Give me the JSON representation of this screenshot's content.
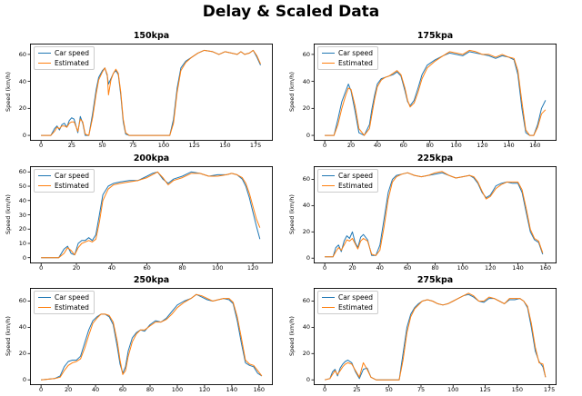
{
  "figure": {
    "suptitle": "Delay & Scaled Data",
    "background": "#ffffff"
  },
  "colors": {
    "car_speed": "#1f77b4",
    "estimated": "#ff7f0e"
  },
  "chart_data": [
    {
      "type": "line",
      "title": "150kpa",
      "ylabel": "Speed (km/h)",
      "legend_position": "upper-left",
      "grid": false,
      "xlim": [
        -9,
        189
      ],
      "ylim": [
        -4,
        68
      ],
      "xticks": [
        0,
        25,
        50,
        75,
        100,
        125,
        150,
        175
      ],
      "yticks": [
        0,
        20,
        40,
        60
      ],
      "x": [
        0,
        8,
        11,
        13,
        15,
        17,
        19,
        21,
        23,
        25,
        27,
        30,
        32,
        34,
        36,
        39,
        42,
        45,
        47,
        50,
        52,
        54,
        55,
        57,
        59,
        61,
        63,
        65,
        67,
        69,
        72,
        90,
        105,
        108,
        111,
        114,
        118,
        123,
        128,
        133,
        140,
        145,
        150,
        155,
        160,
        163,
        166,
        170,
        173,
        176,
        179
      ],
      "series": [
        {
          "name": "Car speed",
          "color": "#1f77b4",
          "values": [
            0,
            0,
            5,
            7,
            4,
            8,
            9,
            6,
            11,
            13,
            12,
            2,
            14,
            9,
            0,
            0,
            16,
            34,
            43,
            48,
            50,
            44,
            38,
            42,
            46,
            48,
            45,
            30,
            10,
            1,
            0,
            0,
            0,
            12,
            35,
            50,
            55,
            58,
            61,
            63,
            62,
            60,
            62,
            61,
            60,
            62,
            60,
            61,
            63,
            58,
            52
          ]
        },
        {
          "name": "Estimated",
          "color": "#ff7f0e",
          "values": [
            0,
            0,
            3,
            6,
            5,
            7,
            7,
            6,
            9,
            10,
            10,
            3,
            12,
            10,
            1,
            0,
            13,
            31,
            41,
            47,
            50,
            45,
            30,
            41,
            46,
            49,
            46,
            32,
            12,
            2,
            0,
            0,
            0,
            9,
            32,
            48,
            54,
            58,
            61,
            63,
            62,
            60,
            62,
            61,
            60,
            62,
            60,
            61,
            63,
            59,
            53
          ]
        }
      ]
    },
    {
      "type": "line",
      "title": "175kpa",
      "ylabel": "Speed (km/h)",
      "legend_position": "upper-left",
      "grid": false,
      "xlim": [
        -8.4,
        176.4
      ],
      "ylim": [
        -4,
        68
      ],
      "xticks": [
        0,
        20,
        40,
        60,
        80,
        100,
        120,
        140,
        160
      ],
      "yticks": [
        0,
        20,
        40,
        60
      ],
      "x": [
        0,
        7,
        10,
        13,
        16,
        18,
        20,
        23,
        26,
        30,
        34,
        36,
        38,
        40,
        43,
        46,
        49,
        52,
        55,
        58,
        61,
        63,
        65,
        68,
        71,
        74,
        78,
        84,
        90,
        95,
        100,
        105,
        110,
        115,
        120,
        125,
        130,
        135,
        140,
        144,
        147,
        150,
        153,
        156,
        159,
        162,
        165,
        168
      ],
      "series": [
        {
          "name": "Car speed",
          "color": "#1f77b4",
          "values": [
            0,
            0,
            12,
            25,
            33,
            38,
            33,
            18,
            2,
            0,
            8,
            20,
            30,
            38,
            42,
            43,
            44,
            45,
            47,
            44,
            33,
            25,
            22,
            26,
            35,
            45,
            52,
            56,
            59,
            61,
            60,
            59,
            62,
            61,
            60,
            59,
            57,
            59,
            58,
            56,
            45,
            20,
            2,
            0,
            0,
            8,
            20,
            26
          ]
        },
        {
          "name": "Estimated",
          "color": "#ff7f0e",
          "values": [
            0,
            0,
            8,
            20,
            30,
            35,
            34,
            22,
            5,
            0,
            5,
            16,
            27,
            36,
            41,
            43,
            44,
            46,
            48,
            45,
            35,
            26,
            21,
            24,
            32,
            42,
            50,
            55,
            59,
            62,
            61,
            60,
            63,
            62,
            60,
            60,
            58,
            60,
            58,
            57,
            48,
            25,
            4,
            0,
            0,
            6,
            16,
            19
          ]
        }
      ]
    },
    {
      "type": "line",
      "title": "200kpa",
      "ylabel": "Speed (km/h)",
      "legend_position": "upper-left",
      "grid": false,
      "xlim": [
        -6.3,
        131.3
      ],
      "ylim": [
        -4,
        64
      ],
      "xticks": [
        0,
        20,
        40,
        60,
        80,
        100,
        120
      ],
      "yticks": [
        0,
        10,
        20,
        30,
        40,
        50,
        60
      ],
      "x": [
        0,
        10,
        13,
        15,
        17,
        19,
        21,
        23,
        25,
        27,
        29,
        31,
        33,
        35,
        38,
        41,
        45,
        50,
        55,
        60,
        63,
        66,
        69,
        72,
        75,
        80,
        85,
        90,
        95,
        100,
        105,
        108,
        111,
        114,
        116,
        118,
        120,
        122,
        124
      ],
      "series": [
        {
          "name": "Car speed",
          "color": "#1f77b4",
          "values": [
            0,
            0,
            6,
            8,
            3,
            2,
            10,
            12,
            12,
            14,
            12,
            16,
            30,
            44,
            50,
            52,
            53,
            54,
            54,
            57,
            59,
            60,
            55,
            52,
            55,
            57,
            60,
            59,
            57,
            58,
            58,
            59,
            58,
            55,
            50,
            42,
            32,
            22,
            13
          ]
        },
        {
          "name": "Estimated",
          "color": "#ff7f0e",
          "values": [
            0,
            0,
            3,
            7,
            5,
            2,
            7,
            10,
            11,
            12,
            11,
            13,
            25,
            40,
            48,
            51,
            52,
            53,
            54,
            56,
            58,
            60,
            56,
            51,
            54,
            56,
            59,
            59,
            57,
            57,
            58,
            59,
            58,
            56,
            52,
            45,
            36,
            27,
            21
          ]
        }
      ]
    },
    {
      "type": "line",
      "title": "225kpa",
      "ylabel": "Speed (km/h)",
      "legend_position": "upper-left",
      "grid": false,
      "xlim": [
        -8,
        168
      ],
      "ylim": [
        -4,
        70
      ],
      "xticks": [
        0,
        20,
        40,
        60,
        80,
        100,
        120,
        140,
        160
      ],
      "yticks": [
        0,
        20,
        40,
        60
      ],
      "x": [
        0,
        6,
        8,
        10,
        12,
        14,
        16,
        18,
        20,
        22,
        24,
        26,
        28,
        31,
        34,
        37,
        40,
        43,
        46,
        49,
        52,
        56,
        60,
        65,
        70,
        75,
        80,
        85,
        90,
        95,
        100,
        105,
        108,
        111,
        114,
        117,
        120,
        124,
        128,
        132,
        136,
        140,
        143,
        146,
        149,
        152,
        155,
        158
      ],
      "series": [
        {
          "name": "Car speed",
          "color": "#1f77b4",
          "values": [
            1,
            1,
            8,
            10,
            5,
            13,
            17,
            15,
            20,
            12,
            8,
            16,
            18,
            14,
            2,
            2,
            10,
            30,
            50,
            60,
            63,
            64,
            65,
            63,
            62,
            63,
            64,
            65,
            63,
            61,
            62,
            63,
            61,
            57,
            50,
            46,
            48,
            55,
            57,
            58,
            57,
            57,
            50,
            35,
            20,
            14,
            12,
            3
          ]
        },
        {
          "name": "Estimated",
          "color": "#ff7f0e",
          "values": [
            1,
            1,
            5,
            8,
            6,
            10,
            14,
            13,
            15,
            11,
            7,
            13,
            15,
            13,
            3,
            2,
            6,
            24,
            45,
            58,
            62,
            64,
            65,
            63,
            62,
            63,
            65,
            66,
            63,
            61,
            62,
            63,
            62,
            58,
            51,
            45,
            47,
            53,
            56,
            58,
            58,
            58,
            52,
            38,
            22,
            15,
            13,
            4
          ]
        }
      ]
    },
    {
      "type": "line",
      "title": "250kpa",
      "ylabel": "Speed (km/h)",
      "legend_position": "upper-left",
      "grid": false,
      "xlim": [
        -8.1,
        170.1
      ],
      "ylim": [
        -4,
        70
      ],
      "xticks": [
        0,
        20,
        40,
        60,
        80,
        100,
        120,
        140,
        160
      ],
      "yticks": [
        0,
        20,
        40,
        60
      ],
      "x": [
        0,
        10,
        14,
        17,
        20,
        23,
        26,
        29,
        32,
        35,
        38,
        41,
        44,
        47,
        50,
        53,
        56,
        58,
        60,
        62,
        64,
        67,
        70,
        73,
        76,
        80,
        84,
        88,
        92,
        96,
        100,
        105,
        110,
        114,
        118,
        122,
        126,
        130,
        134,
        138,
        141,
        144,
        147,
        150,
        153,
        156,
        159,
        162
      ],
      "series": [
        {
          "name": "Car speed",
          "color": "#1f77b4",
          "values": [
            0,
            1,
            3,
            10,
            14,
            15,
            15,
            18,
            28,
            38,
            45,
            48,
            50,
            50,
            48,
            42,
            25,
            12,
            5,
            10,
            22,
            32,
            36,
            38,
            37,
            42,
            45,
            44,
            47,
            52,
            57,
            60,
            62,
            65,
            63,
            61,
            60,
            61,
            62,
            61,
            58,
            45,
            28,
            13,
            11,
            10,
            5,
            3
          ]
        },
        {
          "name": "Estimated",
          "color": "#ff7f0e",
          "values": [
            0,
            1,
            2,
            7,
            11,
            13,
            14,
            16,
            24,
            34,
            43,
            47,
            50,
            50,
            49,
            44,
            29,
            15,
            4,
            7,
            18,
            29,
            35,
            38,
            38,
            41,
            44,
            44,
            46,
            50,
            55,
            59,
            62,
            65,
            64,
            62,
            60,
            61,
            62,
            62,
            59,
            48,
            32,
            15,
            12,
            11,
            7,
            3
          ]
        }
      ]
    },
    {
      "type": "line",
      "title": "275kpa",
      "ylabel": "Speed (km/h)",
      "legend_position": "upper-left",
      "grid": false,
      "xlim": [
        -8.6,
        180.6
      ],
      "ylim": [
        -4,
        70
      ],
      "xticks": [
        0,
        25,
        50,
        75,
        100,
        125,
        150,
        175
      ],
      "yticks": [
        0,
        20,
        40,
        60
      ],
      "x": [
        0,
        4,
        6,
        8,
        10,
        12,
        14,
        16,
        18,
        21,
        24,
        27,
        30,
        33,
        36,
        40,
        50,
        58,
        61,
        64,
        67,
        70,
        73,
        76,
        80,
        84,
        88,
        92,
        96,
        100,
        104,
        108,
        112,
        116,
        120,
        124,
        128,
        132,
        136,
        140,
        144,
        148,
        152,
        155,
        158,
        161,
        164,
        167,
        170,
        172
      ],
      "series": [
        {
          "name": "Car speed",
          "color": "#1f77b4",
          "values": [
            0,
            1,
            6,
            8,
            3,
            9,
            12,
            14,
            15,
            13,
            6,
            1,
            8,
            9,
            2,
            0,
            0,
            0,
            20,
            40,
            50,
            55,
            58,
            60,
            61,
            60,
            58,
            57,
            58,
            60,
            62,
            64,
            65,
            63,
            60,
            59,
            62,
            62,
            60,
            58,
            61,
            61,
            62,
            60,
            55,
            40,
            22,
            14,
            10,
            2
          ]
        },
        {
          "name": "Estimated",
          "color": "#ff7f0e",
          "values": [
            0,
            1,
            4,
            7,
            4,
            7,
            10,
            12,
            13,
            12,
            7,
            2,
            13,
            8,
            2,
            0,
            0,
            0,
            15,
            36,
            48,
            54,
            57,
            60,
            61,
            60,
            58,
            57,
            58,
            60,
            62,
            64,
            66,
            64,
            60,
            60,
            63,
            62,
            60,
            58,
            62,
            62,
            62,
            60,
            56,
            43,
            25,
            13,
            12,
            2
          ]
        }
      ]
    }
  ]
}
